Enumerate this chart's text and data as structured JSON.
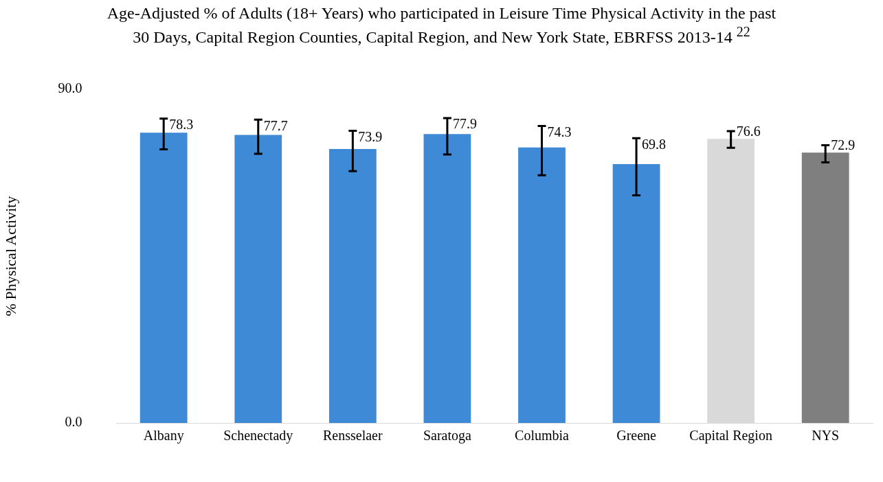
{
  "chart_data": {
    "type": "bar",
    "title": "Age-Adjusted % of Adults (18+ Years) who participated in Leisure Time Physical Activity in the past 30 Days, Capital Region Counties, Capital Region, and New York State,  EBRFSS 2013-14 $^{22}$",
    "ylabel": "% Physical Activity",
    "categories": [
      "Albany",
      "Schenectady",
      "Rensselaer",
      "Saratoga",
      "Columbia",
      "Greene",
      "Capital Region",
      "NYS"
    ],
    "values": [
      78.3,
      77.7,
      73.9,
      77.9,
      74.3,
      69.8,
      76.6,
      72.9
    ],
    "colors": [
      "#3f8ad6",
      "#3f8ad6",
      "#3f8ad6",
      "#3f8ad6",
      "#3f8ad6",
      "#3f8ad6",
      "#d9d9d9",
      "#7f7f7f"
    ],
    "errors": [
      [
        73.8,
        82.1
      ],
      [
        72.6,
        81.8
      ],
      [
        67.9,
        78.8
      ],
      [
        72.4,
        82.2
      ],
      [
        66.8,
        80.1
      ],
      [
        61.4,
        76.8
      ],
      [
        74.2,
        78.7
      ],
      [
        70.3,
        74.9
      ]
    ],
    "ylim": [
      0,
      90
    ],
    "yticks": [
      {
        "value": 0,
        "label": "0.0"
      },
      {
        "value": 90,
        "label": "90.0"
      }
    ],
    "grid": false,
    "legend": false,
    "data_labels": true
  }
}
